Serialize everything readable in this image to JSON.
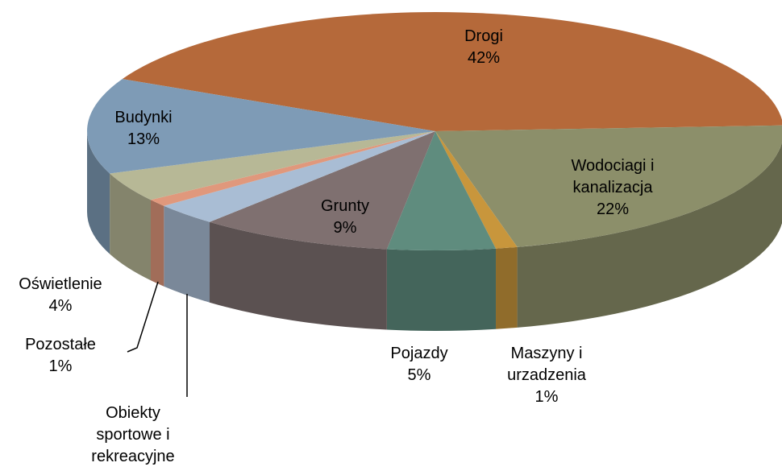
{
  "chart_data": {
    "type": "pie",
    "categories": [
      "Drogi",
      "Wodociagi i kanalizacja",
      "Maszyny i urzadzenia",
      "Pojazdy",
      "Grunty",
      "Obiekty sportowe i rekreacyjne",
      "Pozostałe",
      "Oświetlenie",
      "Budynki"
    ],
    "values": [
      42,
      22,
      1,
      5,
      9,
      3,
      1,
      4,
      13
    ],
    "value_labels": [
      "42%",
      "22%",
      "1%",
      "5%",
      "9%",
      null,
      "1%",
      "4%",
      "13%"
    ],
    "colors": [
      "#b5693a",
      "#8c8f6a",
      "#c8963c",
      "#5f8c7e",
      "#7f7070",
      "#a9bdd4",
      "#e0987c",
      "#b7b896",
      "#7e9bb6"
    ]
  }
}
